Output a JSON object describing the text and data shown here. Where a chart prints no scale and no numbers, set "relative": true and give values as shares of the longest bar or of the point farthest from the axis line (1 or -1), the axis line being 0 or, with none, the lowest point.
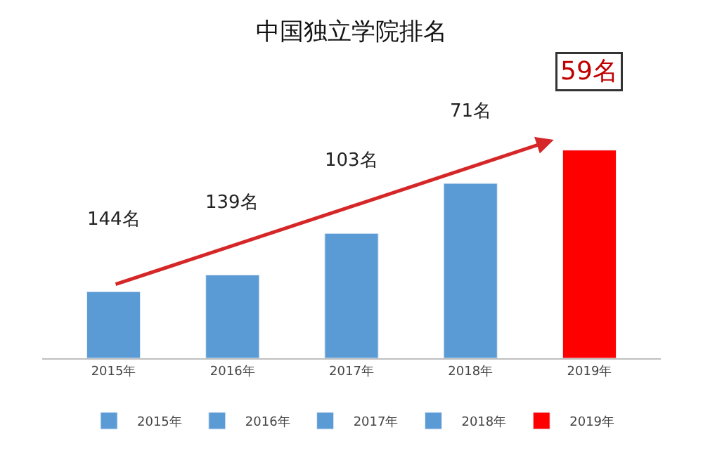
{
  "chart_data": {
    "type": "bar",
    "title": "中国独立学院排名",
    "relative": true,
    "legend": "bottom",
    "categories": [
      "2015年",
      "2016年",
      "2017年",
      "2018年",
      "2019年"
    ],
    "series": [
      {
        "name": "2015年",
        "color": "#5b9bd5",
        "values": [
          0.32,
          null,
          null,
          null,
          null
        ]
      },
      {
        "name": "2016年",
        "color": "#5b9bd5",
        "values": [
          null,
          0.4,
          null,
          null,
          null
        ]
      },
      {
        "name": "2017年",
        "color": "#5b9bd5",
        "values": [
          null,
          null,
          0.6,
          null,
          null
        ]
      },
      {
        "name": "2018年",
        "color": "#5b9bd5",
        "values": [
          null,
          null,
          null,
          0.84,
          null
        ]
      },
      {
        "name": "2019年",
        "color": "#ff0000",
        "values": [
          null,
          null,
          null,
          null,
          1.0
        ]
      }
    ],
    "annotations": [
      "144名",
      "139名",
      "103名",
      "71名",
      "59名"
    ]
  }
}
